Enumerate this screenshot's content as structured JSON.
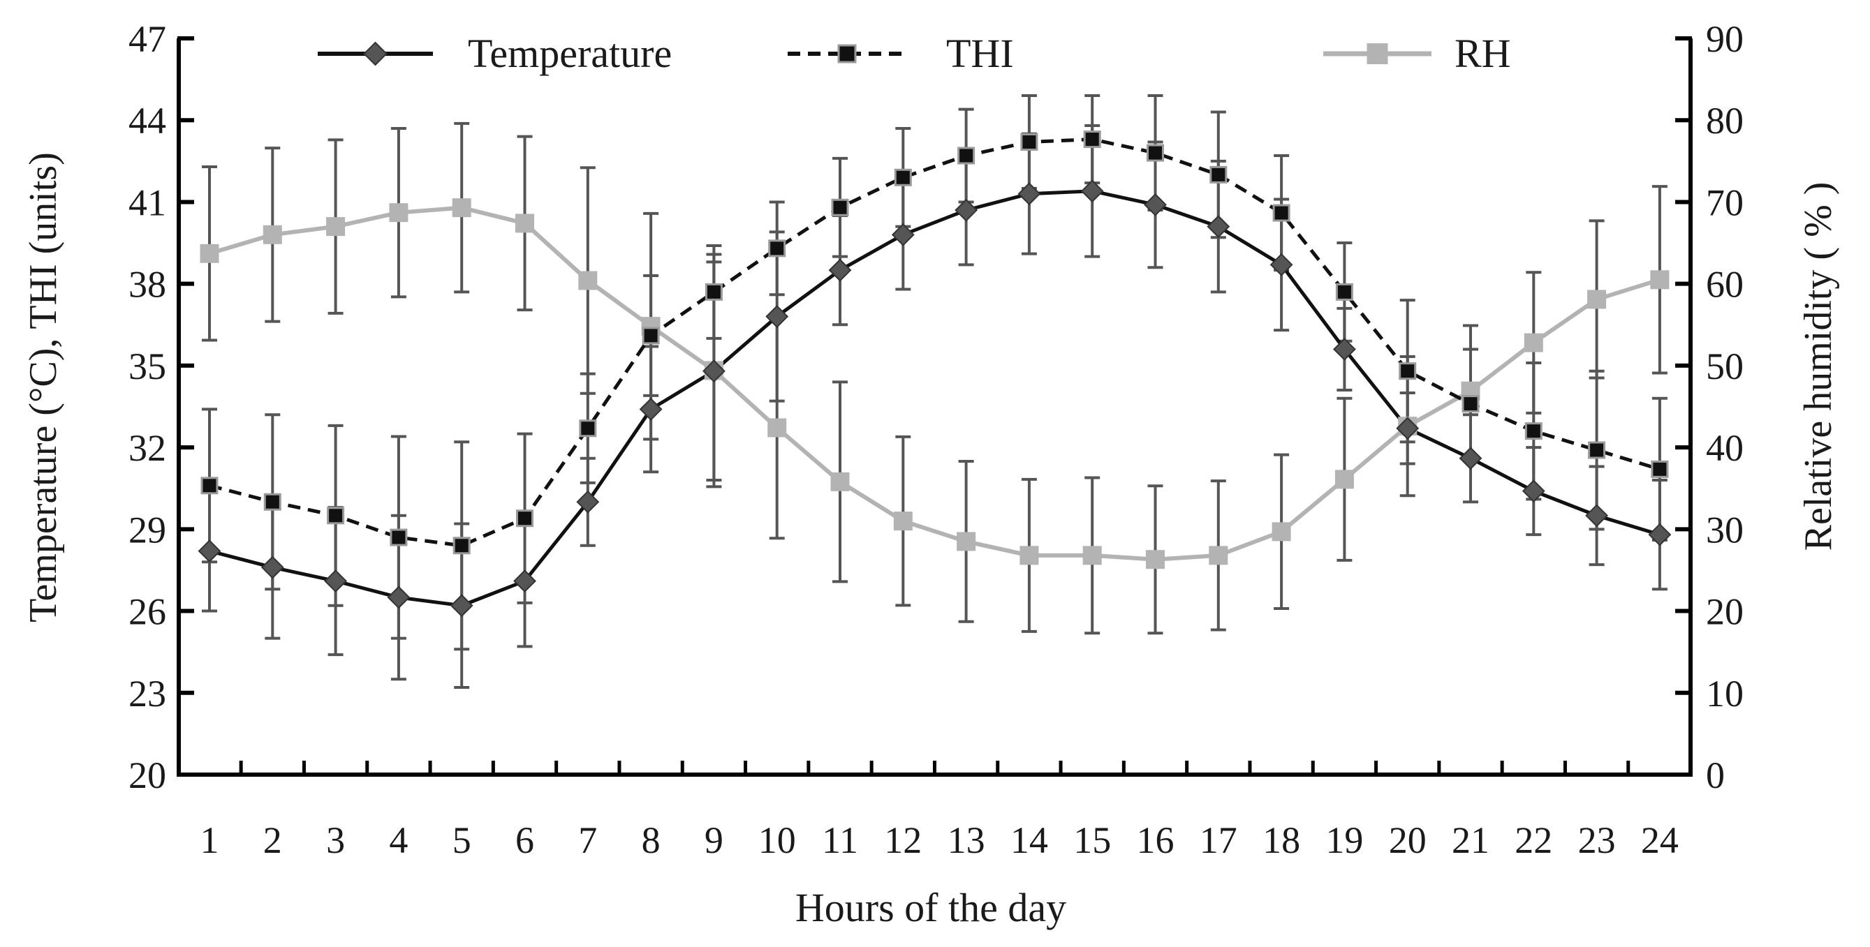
{
  "chart_data": {
    "type": "line",
    "categories": [
      "1",
      "2",
      "3",
      "4",
      "5",
      "6",
      "7",
      "8",
      "9",
      "10",
      "11",
      "12",
      "13",
      "14",
      "15",
      "16",
      "17",
      "18",
      "19",
      "20",
      "21",
      "22",
      "23",
      "24"
    ],
    "xlabel": "Hours of the day",
    "ylabel_left": "Temperature (°C),  THI (units)",
    "ylabel_right": "Relative humidity ( % )",
    "ylim_left": [
      20,
      47
    ],
    "yticks_left": [
      "20",
      "23",
      "26",
      "29",
      "32",
      "35",
      "38",
      "41",
      "44",
      "47"
    ],
    "ylim_right": [
      0,
      90
    ],
    "yticks_right": [
      "0",
      "10",
      "20",
      "30",
      "40",
      "50",
      "60",
      "70",
      "80",
      "90"
    ],
    "grid": false,
    "legend_position": "top",
    "series": [
      {
        "name": "Temperature",
        "axis": "left",
        "marker": "diamond",
        "line": "solid",
        "color": "#111111",
        "marker_color": "#555555",
        "values": [
          28.2,
          27.6,
          27.1,
          26.5,
          26.2,
          27.1,
          30.0,
          33.4,
          34.8,
          36.8,
          38.5,
          39.8,
          40.7,
          41.3,
          41.4,
          40.9,
          40.1,
          38.7,
          35.6,
          32.7,
          31.6,
          30.4,
          29.5,
          28.8
        ],
        "errors": [
          2.2,
          2.6,
          2.7,
          3.0,
          3.0,
          2.4,
          1.6,
          2.3,
          4.0,
          3.1,
          2.0,
          2.0,
          2.0,
          2.2,
          2.4,
          2.3,
          2.4,
          2.4,
          1.5,
          1.3,
          1.6,
          1.6,
          1.8,
          2.0
        ]
      },
      {
        "name": "THI",
        "axis": "left",
        "marker": "square",
        "line": "dashed",
        "color": "#111111",
        "marker_color": "#111111",
        "values": [
          30.6,
          30.0,
          29.5,
          28.7,
          28.4,
          29.4,
          32.7,
          36.1,
          37.7,
          39.3,
          40.8,
          41.9,
          42.7,
          43.2,
          43.3,
          42.8,
          42.0,
          40.6,
          37.7,
          34.8,
          33.6,
          32.6,
          31.9,
          31.2
        ],
        "errors": [
          2.8,
          3.2,
          3.3,
          3.7,
          3.8,
          3.1,
          2.0,
          2.2,
          1.7,
          1.7,
          1.8,
          1.8,
          1.7,
          1.7,
          1.6,
          2.1,
          2.3,
          2.1,
          1.8,
          2.6,
          2.0,
          2.5,
          2.9,
          2.6
        ]
      },
      {
        "name": "RH",
        "axis": "right",
        "marker": "square",
        "line": "solid",
        "color": "#b3b3b3",
        "marker_color": "#b3b3b3",
        "values": [
          63.7,
          66.0,
          67.0,
          68.7,
          69.3,
          67.4,
          60.4,
          54.8,
          49.4,
          42.4,
          35.8,
          31.0,
          28.5,
          26.8,
          26.8,
          26.3,
          26.8,
          29.7,
          36.1,
          42.6,
          46.9,
          52.8,
          58.1,
          60.5
        ],
        "errors": [
          10.6,
          10.6,
          10.6,
          10.3,
          10.3,
          10.6,
          13.8,
          13.8,
          14.2,
          13.5,
          12.2,
          10.3,
          9.8,
          9.3,
          9.5,
          9.0,
          9.1,
          9.4,
          9.9,
          8.5,
          8.0,
          8.6,
          9.6,
          11.4
        ]
      }
    ]
  }
}
